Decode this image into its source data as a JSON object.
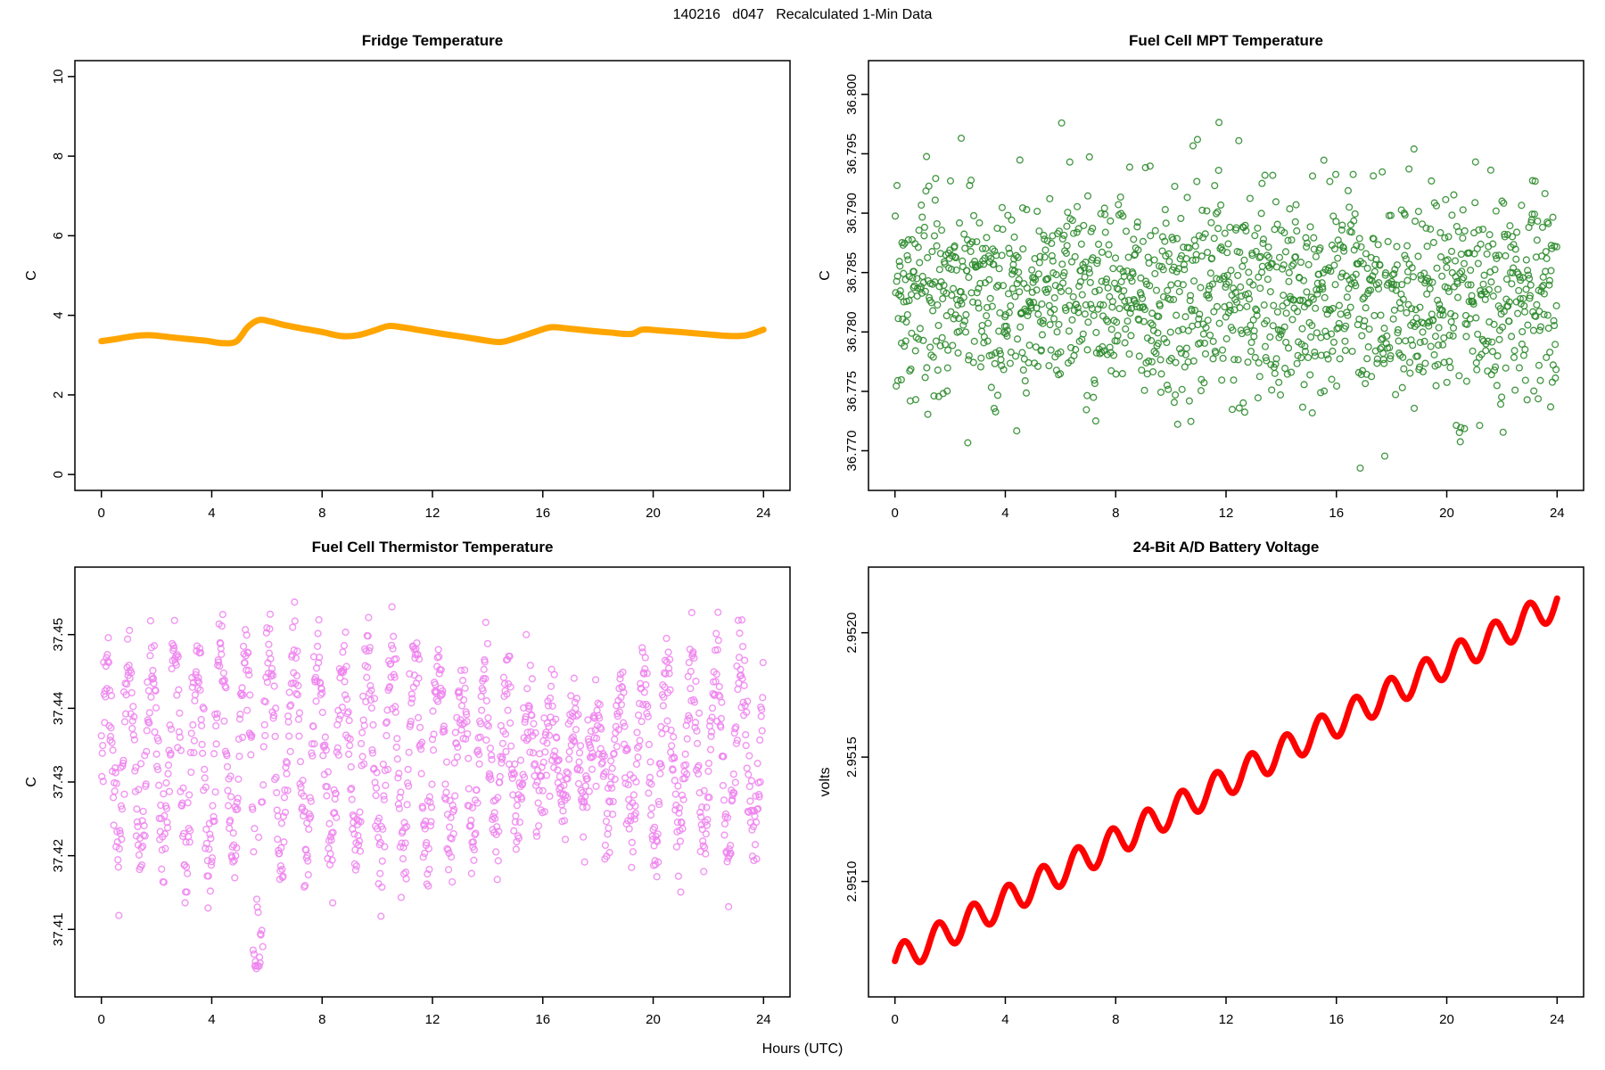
{
  "figure": {
    "title": "140216   d047   Recalculated 1-Min Data",
    "xlabel": "Hours (UTC)",
    "background": "#ffffff",
    "frame_color": "#000000"
  },
  "chart_data": [
    {
      "id": "fridge",
      "type": "line",
      "title": "Fridge Temperature",
      "ylabel": "C",
      "color": "#FFA500",
      "line_width": 7,
      "xlim": [
        0,
        24
      ],
      "ylim": [
        0,
        10
      ],
      "x_ticks": [
        0,
        4,
        8,
        12,
        16,
        20,
        24
      ],
      "x_tick_labels": [
        "0",
        "4",
        "8",
        "12",
        "16",
        "20",
        "24"
      ],
      "y_ticks": [
        0,
        2,
        4,
        6,
        8,
        10
      ],
      "y_tick_labels": [
        "0",
        "2",
        "4",
        "6",
        "8",
        "10"
      ],
      "points": [
        [
          0,
          3.35
        ],
        [
          0.5,
          3.4
        ],
        [
          1.2,
          3.48
        ],
        [
          1.8,
          3.5
        ],
        [
          2.5,
          3.45
        ],
        [
          3.2,
          3.4
        ],
        [
          3.8,
          3.36
        ],
        [
          4.4,
          3.3
        ],
        [
          4.9,
          3.35
        ],
        [
          5.3,
          3.7
        ],
        [
          5.7,
          3.88
        ],
        [
          6.1,
          3.85
        ],
        [
          6.6,
          3.76
        ],
        [
          7.2,
          3.68
        ],
        [
          8,
          3.58
        ],
        [
          8.7,
          3.48
        ],
        [
          9.3,
          3.5
        ],
        [
          9.9,
          3.62
        ],
        [
          10.4,
          3.73
        ],
        [
          10.9,
          3.7
        ],
        [
          11.6,
          3.62
        ],
        [
          12.4,
          3.53
        ],
        [
          13.2,
          3.45
        ],
        [
          14,
          3.36
        ],
        [
          14.5,
          3.33
        ],
        [
          15,
          3.42
        ],
        [
          15.7,
          3.58
        ],
        [
          16.3,
          3.7
        ],
        [
          16.9,
          3.67
        ],
        [
          17.6,
          3.62
        ],
        [
          18.4,
          3.57
        ],
        [
          19.2,
          3.53
        ],
        [
          19.6,
          3.64
        ],
        [
          20.2,
          3.62
        ],
        [
          21,
          3.58
        ],
        [
          22,
          3.52
        ],
        [
          22.8,
          3.48
        ],
        [
          23.4,
          3.5
        ],
        [
          24,
          3.64
        ]
      ]
    },
    {
      "id": "mpt",
      "type": "scatter",
      "title": "Fuel Cell MPT Temperature",
      "ylabel": "C",
      "color": "#2E8B2E",
      "marker": "open-circle",
      "xlim": [
        0,
        24
      ],
      "ylim": [
        36.768,
        36.8015
      ],
      "x_ticks": [
        0,
        4,
        8,
        12,
        16,
        20,
        24
      ],
      "x_tick_labels": [
        "0",
        "4",
        "8",
        "12",
        "16",
        "20",
        "24"
      ],
      "y_ticks": [
        36.77,
        36.775,
        36.78,
        36.785,
        36.79,
        36.795,
        36.8
      ],
      "y_tick_labels": [
        "36.770",
        "36.775",
        "36.780",
        "36.785",
        "36.790",
        "36.795",
        "36.800"
      ],
      "gen": {
        "kind": "normal",
        "n": 1440,
        "mean": 36.7831,
        "sd": 0.0045,
        "min": 36.7685,
        "max": 36.801,
        "seed": 20140216
      }
    },
    {
      "id": "thermistor",
      "type": "scatter",
      "title": "Fuel Cell Thermistor Temperature",
      "ylabel": "C",
      "color": "#EE82EE",
      "marker": "open-circle",
      "xlim": [
        0,
        24
      ],
      "ylim": [
        37.403,
        37.457
      ],
      "x_ticks": [
        0,
        4,
        8,
        12,
        16,
        20,
        24
      ],
      "x_tick_labels": [
        "0",
        "4",
        "8",
        "12",
        "16",
        "20",
        "24"
      ],
      "y_ticks": [
        37.41,
        37.42,
        37.43,
        37.44,
        37.45
      ],
      "y_tick_labels": [
        "37.41",
        "37.42",
        "37.43",
        "37.44",
        "37.45"
      ],
      "gen": {
        "kind": "osc",
        "n": 1440,
        "base": 37.4335,
        "period": 0.85,
        "noise": 0.0035,
        "seed": 47,
        "amp_profile": [
          [
            0,
            0.0105
          ],
          [
            1,
            0.012
          ],
          [
            3,
            0.013
          ],
          [
            5,
            0.015
          ],
          [
            6,
            0.014
          ],
          [
            8,
            0.014
          ],
          [
            10,
            0.013
          ],
          [
            12,
            0.014
          ],
          [
            13,
            0.01
          ],
          [
            14,
            0.012
          ],
          [
            15,
            0.008
          ],
          [
            16,
            0.006
          ],
          [
            17,
            0.006
          ],
          [
            18,
            0.007
          ],
          [
            19,
            0.009
          ],
          [
            20,
            0.012
          ],
          [
            22,
            0.012
          ],
          [
            24,
            0.013
          ]
        ],
        "min": 37.4035,
        "max": 37.4565,
        "dip": {
          "t_start": 5.5,
          "t_end": 5.85,
          "y_min": 37.4035,
          "y_max": 37.4135,
          "fraction": 0.6
        }
      }
    },
    {
      "id": "battery",
      "type": "line",
      "title": "24-Bit A/D Battery Voltage",
      "ylabel": "volts",
      "color": "#FF0000",
      "line_width": 7,
      "xlim": [
        0,
        24
      ],
      "ylim": [
        2.9506,
        2.9522
      ],
      "x_ticks": [
        0,
        4,
        8,
        12,
        16,
        20,
        24
      ],
      "x_tick_labels": [
        "0",
        "4",
        "8",
        "12",
        "16",
        "20",
        "24"
      ],
      "y_ticks": [
        2.951,
        2.9515,
        2.952
      ],
      "y_tick_labels": [
        "2.9510",
        "2.9515",
        "2.9520"
      ],
      "gen": {
        "kind": "ripple",
        "n": 1440,
        "start": 2.95068,
        "end": 2.95212,
        "ripple_amp": 6e-05,
        "ripple_period": 1.26
      }
    }
  ]
}
